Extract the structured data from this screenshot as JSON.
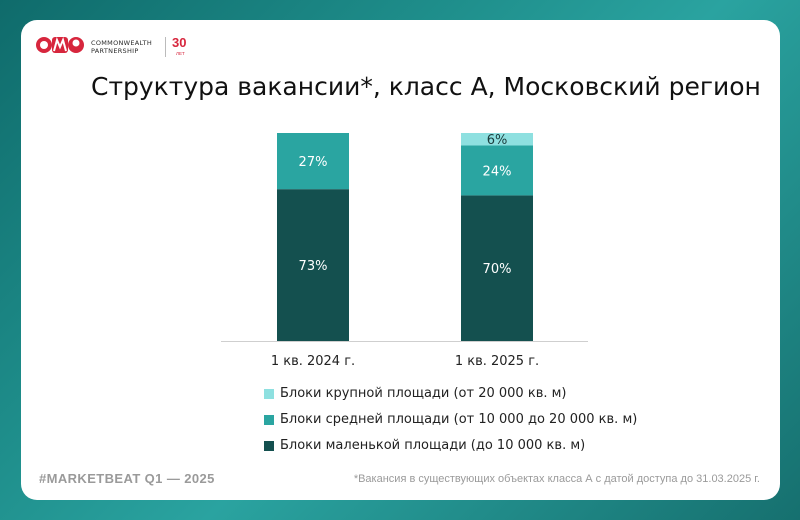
{
  "logo": {
    "brand_line1": "COMMONWEALTH",
    "brand_line2": "PARTNERSHIP",
    "anniversary": "30",
    "anniversary_unit": "ЛЕТ"
  },
  "title": "Структура вакансии*, класс А, Московский регион",
  "chart_data": {
    "type": "bar",
    "stacked": true,
    "normalized": true,
    "categories": [
      "1 кв. 2024 г.",
      "1 кв. 2025 г."
    ],
    "series": [
      {
        "name": "Блоки маленькой площади (до 10 000 кв. м)",
        "values": [
          73,
          70
        ],
        "labels": [
          "73%",
          "70%"
        ],
        "color": "#14504f"
      },
      {
        "name": "Блоки средней площади (от 10 000 до 20 000 кв. м)",
        "values": [
          27,
          24
        ],
        "labels": [
          "27%",
          "24%"
        ],
        "color": "#2aa5a1"
      },
      {
        "name": "Блоки крупной площади (от 20 000 кв. м)",
        "values": [
          0,
          6
        ],
        "labels": [
          "",
          "6%"
        ],
        "color": "#8ee0e0"
      }
    ],
    "ylim": [
      0,
      100
    ],
    "legend_order": [
      2,
      1,
      0
    ],
    "legend_position": "bottom"
  },
  "footer": {
    "tag": "#MARKETBEAT Q1  —  2025",
    "note": "*Вакансия в существующих объектах класса А с датой доступа до 31.03.2025 г."
  }
}
